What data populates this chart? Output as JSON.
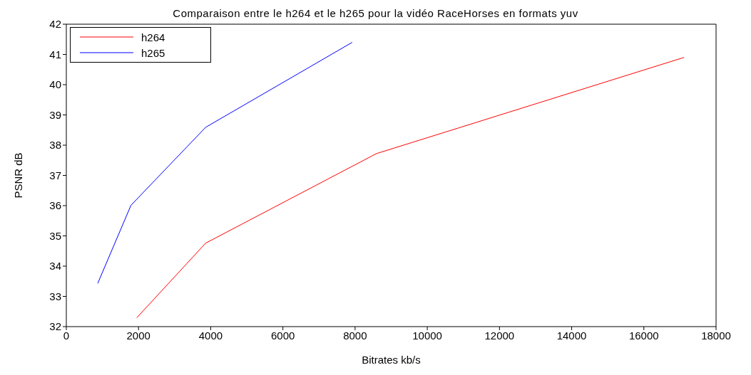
{
  "chart_data": {
    "type": "line",
    "title": "Comparaison entre le h264 et le h265 pour la vidéo RaceHorses en formats yuv",
    "xlabel": "Bitrates kb/s",
    "ylabel": "PSNR dB",
    "series": [
      {
        "name": "h264",
        "color": "#ff0000",
        "x": [
          1950,
          3860,
          8590,
          17110
        ],
        "values": [
          32.29,
          34.76,
          37.72,
          40.9
        ]
      },
      {
        "name": "h265",
        "color": "#0000ff",
        "x": [
          870,
          1790,
          3860,
          7920
        ],
        "values": [
          33.43,
          36.01,
          38.59,
          41.4
        ]
      }
    ],
    "xlim": [
      0,
      18000
    ],
    "xticks": [
      0,
      2000,
      4000,
      6000,
      8000,
      10000,
      12000,
      14000,
      16000,
      18000
    ],
    "ylim": [
      32,
      42
    ],
    "yticks": [
      32,
      33,
      34,
      35,
      36,
      37,
      38,
      39,
      40,
      41,
      42
    ],
    "legend": "top left",
    "marker": "none",
    "line_style": "solid",
    "grid": false
  }
}
